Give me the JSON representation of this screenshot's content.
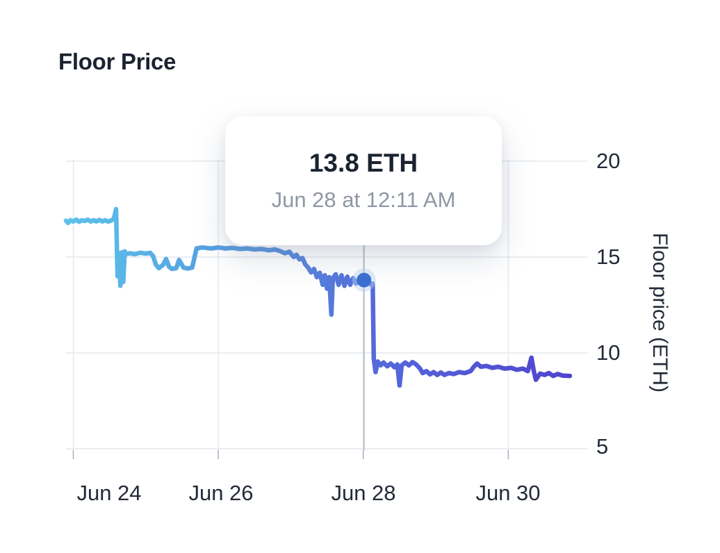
{
  "header": {
    "title": "Floor Price"
  },
  "chart_data": {
    "type": "line",
    "title": "Floor Price",
    "xlabel": "",
    "ylabel": "Floor price (ETH)",
    "series_name": "Floor price",
    "legend": false,
    "grid": true,
    "xlim": [
      23.9,
      30.85
    ],
    "ylim": [
      5,
      20
    ],
    "x_ticks": [
      {
        "value": 24,
        "label": "Jun 24"
      },
      {
        "value": 26,
        "label": "Jun 26"
      },
      {
        "value": 28,
        "label": "Jun 28"
      },
      {
        "value": 30,
        "label": "Jun 30"
      }
    ],
    "y_ticks": [
      {
        "value": 20,
        "label": "20"
      },
      {
        "value": 15,
        "label": "15"
      },
      {
        "value": 10,
        "label": "10"
      },
      {
        "value": 5,
        "label": "5"
      }
    ],
    "highlight": {
      "x": 28.01,
      "y": 13.8,
      "value_label": "13.8 ETH",
      "time_label": "Jun 28 at 12:11 AM"
    },
    "colors": {
      "gradient": [
        {
          "offset": 0,
          "color": "#5cc3ea"
        },
        {
          "offset": 0.35,
          "color": "#5599e0"
        },
        {
          "offset": 0.62,
          "color": "#5568da"
        },
        {
          "offset": 1,
          "color": "#4f44cf"
        }
      ],
      "grid": "#e4e8ee",
      "crosshair": "#a9b0bc",
      "marker": "#3b6fd3",
      "marker_halo": "#bcd4f2",
      "text_dark": "#1b2330",
      "text_muted": "#8f97a5"
    },
    "points": [
      [
        23.9,
        16.9
      ],
      [
        23.93,
        16.78
      ],
      [
        23.96,
        16.92
      ],
      [
        24.0,
        16.85
      ],
      [
        24.04,
        16.95
      ],
      [
        24.08,
        16.84
      ],
      [
        24.12,
        16.92
      ],
      [
        24.16,
        16.88
      ],
      [
        24.2,
        16.95
      ],
      [
        24.24,
        16.85
      ],
      [
        24.28,
        16.92
      ],
      [
        24.32,
        16.86
      ],
      [
        24.36,
        16.94
      ],
      [
        24.4,
        16.86
      ],
      [
        24.44,
        16.92
      ],
      [
        24.48,
        16.85
      ],
      [
        24.52,
        16.9
      ],
      [
        24.56,
        17.0
      ],
      [
        24.59,
        17.5
      ],
      [
        24.61,
        14.0
      ],
      [
        24.63,
        15.2
      ],
      [
        24.65,
        13.5
      ],
      [
        24.67,
        15.25
      ],
      [
        24.69,
        13.7
      ],
      [
        24.71,
        15.3
      ],
      [
        24.73,
        15.15
      ],
      [
        24.78,
        15.2
      ],
      [
        24.85,
        15.15
      ],
      [
        24.92,
        15.22
      ],
      [
        25.0,
        15.18
      ],
      [
        25.06,
        15.22
      ],
      [
        25.1,
        15.05
      ],
      [
        25.14,
        14.6
      ],
      [
        25.18,
        14.42
      ],
      [
        25.24,
        14.6
      ],
      [
        25.28,
        14.9
      ],
      [
        25.32,
        14.5
      ],
      [
        25.36,
        14.38
      ],
      [
        25.42,
        14.42
      ],
      [
        25.46,
        14.85
      ],
      [
        25.52,
        14.45
      ],
      [
        25.58,
        14.4
      ],
      [
        25.64,
        14.45
      ],
      [
        25.7,
        15.45
      ],
      [
        25.78,
        15.5
      ],
      [
        25.9,
        15.45
      ],
      [
        26.0,
        15.5
      ],
      [
        26.1,
        15.45
      ],
      [
        26.2,
        15.48
      ],
      [
        26.3,
        15.42
      ],
      [
        26.4,
        15.45
      ],
      [
        26.5,
        15.4
      ],
      [
        26.6,
        15.42
      ],
      [
        26.7,
        15.35
      ],
      [
        26.78,
        15.4
      ],
      [
        26.86,
        15.3
      ],
      [
        26.92,
        15.2
      ],
      [
        26.98,
        15.28
      ],
      [
        27.04,
        15.0
      ],
      [
        27.08,
        15.12
      ],
      [
        27.12,
        14.88
      ],
      [
        27.16,
        14.95
      ],
      [
        27.2,
        14.62
      ],
      [
        27.24,
        14.45
      ],
      [
        27.28,
        14.2
      ],
      [
        27.32,
        14.38
      ],
      [
        27.36,
        13.95
      ],
      [
        27.4,
        14.18
      ],
      [
        27.44,
        13.55
      ],
      [
        27.47,
        14.05
      ],
      [
        27.5,
        13.35
      ],
      [
        27.53,
        13.95
      ],
      [
        27.56,
        12.0
      ],
      [
        27.58,
        13.9
      ],
      [
        27.62,
        14.1
      ],
      [
        27.66,
        13.55
      ],
      [
        27.7,
        14.05
      ],
      [
        27.74,
        13.5
      ],
      [
        27.78,
        13.98
      ],
      [
        27.82,
        13.55
      ],
      [
        27.86,
        13.9
      ],
      [
        27.9,
        13.62
      ],
      [
        27.94,
        13.82
      ],
      [
        28.01,
        13.8
      ],
      [
        28.06,
        13.7
      ],
      [
        28.1,
        13.58
      ],
      [
        28.13,
        13.62
      ],
      [
        28.145,
        9.7
      ],
      [
        28.17,
        9.0
      ],
      [
        28.2,
        9.55
      ],
      [
        28.24,
        9.35
      ],
      [
        28.28,
        9.5
      ],
      [
        28.33,
        9.3
      ],
      [
        28.38,
        9.45
      ],
      [
        28.43,
        9.25
      ],
      [
        28.47,
        9.4
      ],
      [
        28.5,
        8.3
      ],
      [
        28.53,
        9.35
      ],
      [
        28.58,
        9.5
      ],
      [
        28.63,
        9.35
      ],
      [
        28.68,
        9.52
      ],
      [
        28.73,
        9.4
      ],
      [
        28.78,
        9.2
      ],
      [
        28.82,
        8.95
      ],
      [
        28.87,
        9.05
      ],
      [
        28.92,
        8.88
      ],
      [
        28.97,
        9.0
      ],
      [
        29.02,
        8.85
      ],
      [
        29.07,
        8.98
      ],
      [
        29.12,
        8.85
      ],
      [
        29.18,
        8.95
      ],
      [
        29.25,
        8.9
      ],
      [
        29.32,
        9.0
      ],
      [
        29.4,
        8.95
      ],
      [
        29.48,
        9.05
      ],
      [
        29.53,
        9.3
      ],
      [
        29.57,
        9.45
      ],
      [
        29.62,
        9.28
      ],
      [
        29.7,
        9.32
      ],
      [
        29.78,
        9.22
      ],
      [
        29.86,
        9.28
      ],
      [
        29.95,
        9.18
      ],
      [
        30.04,
        9.22
      ],
      [
        30.12,
        9.12
      ],
      [
        30.2,
        9.18
      ],
      [
        30.27,
        9.05
      ],
      [
        30.32,
        9.75
      ],
      [
        30.35,
        9.1
      ],
      [
        30.38,
        8.6
      ],
      [
        30.44,
        8.92
      ],
      [
        30.5,
        8.85
      ],
      [
        30.56,
        8.95
      ],
      [
        30.62,
        8.8
      ],
      [
        30.68,
        8.9
      ],
      [
        30.75,
        8.82
      ],
      [
        30.85,
        8.8
      ]
    ]
  }
}
